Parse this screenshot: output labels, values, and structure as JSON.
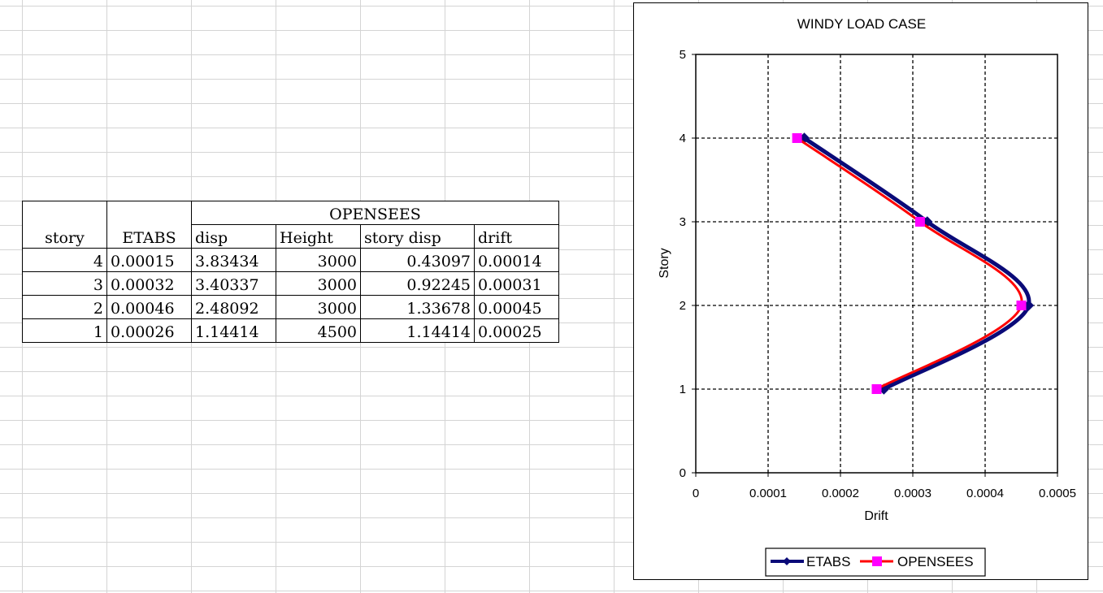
{
  "table": {
    "header_group": "OPENSEES",
    "headers": [
      "story",
      "ETABS",
      "disp",
      "Height",
      "story disp",
      "drift"
    ],
    "rows": [
      [
        "4",
        "0.00015",
        "3.83434",
        "3000",
        "0.43097",
        "0.00014"
      ],
      [
        "3",
        "0.00032",
        "3.40337",
        "3000",
        "0.92245",
        "0.00031"
      ],
      [
        "2",
        "0.00046",
        "2.48092",
        "3000",
        "1.33678",
        "0.00045"
      ],
      [
        "1",
        "0.00026",
        "1.14414",
        "4500",
        "1.14414",
        "0.00025"
      ]
    ]
  },
  "chart_data": {
    "type": "scatter",
    "title": "WINDY LOAD CASE",
    "xlabel": "Drift",
    "ylabel": "Story",
    "xlim": [
      0,
      0.0005
    ],
    "ylim": [
      0,
      5
    ],
    "x_ticks": [
      "0",
      "0.0001",
      "0.0002",
      "0.0003",
      "0.0004",
      "0.0005"
    ],
    "y_ticks": [
      "0",
      "1",
      "2",
      "3",
      "4",
      "5"
    ],
    "grid": true,
    "smooth_lines": true,
    "legend_position": "bottom",
    "series": [
      {
        "name": "ETABS",
        "color": "#0a0a78",
        "marker": "diamond",
        "points": [
          [
            0.00015,
            4
          ],
          [
            0.00032,
            3
          ],
          [
            0.00046,
            2
          ],
          [
            0.00026,
            1
          ]
        ]
      },
      {
        "name": "OPENSEES",
        "color": "#ff0000",
        "marker": "square",
        "marker_color": "#ff00ff",
        "points": [
          [
            0.00014,
            4
          ],
          [
            0.00031,
            3
          ],
          [
            0.00045,
            2
          ],
          [
            0.00025,
            1
          ]
        ]
      }
    ]
  }
}
